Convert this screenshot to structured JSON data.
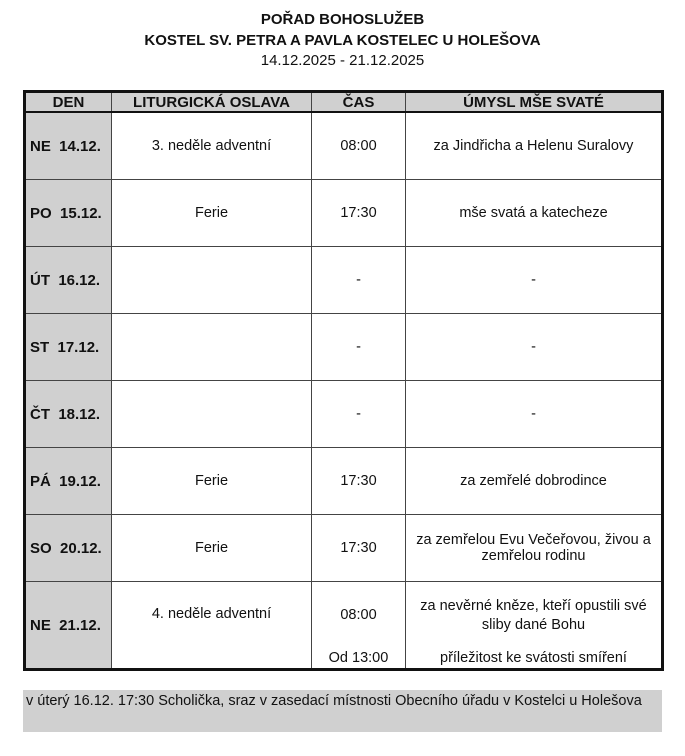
{
  "header": {
    "title": "POŘAD BOHOSLUŽEB",
    "church": "KOSTEL SV. PETRA A PAVLA KOSTELEC U HOLEŠOVA",
    "dates": "14.12.2025 - 21.12.2025"
  },
  "columns": [
    "DEN",
    "LITURGICKÁ OSLAVA",
    "ČAS",
    "ÚMYSL MŠE SVATÉ"
  ],
  "rows": [
    {
      "day": "NE  14.12.",
      "feast": "3. neděle adventní",
      "time": "08:00",
      "intent": "za Jindřicha a Helenu Suralovy"
    },
    {
      "day": "PO  15.12.",
      "feast": "Ferie",
      "time": "17:30",
      "intent": "mše svatá a katecheze"
    },
    {
      "day": "ÚT  16.12.",
      "feast": "",
      "time": "-",
      "intent": "-"
    },
    {
      "day": "ST  17.12.",
      "feast": "",
      "time": "-",
      "intent": "-"
    },
    {
      "day": "ČT  18.12.",
      "feast": "",
      "time": "-",
      "intent": "-"
    },
    {
      "day": "PÁ  19.12.",
      "feast": "Ferie",
      "time": "17:30",
      "intent": "za zemřelé dobrodince"
    },
    {
      "day": "SO  20.12.",
      "feast": "Ferie",
      "time": "17:30",
      "intent": "za zemřelou Evu Večeřovou, živou a zemřelou rodinu"
    }
  ],
  "last": {
    "day": "NE  21.12.",
    "feast": "4. neděle adventní",
    "time": "08:00",
    "intent": "za nevěrné kněze, kteří opustili své sliby dané Bohu",
    "time2": "Od 13:00",
    "intent2": "příležitost ke svátosti smíření"
  },
  "note": "v úterý 16.12. 17:30 Scholička, sraz v zasedací místnosti Obecního úřadu v Kostelci u Holešova"
}
